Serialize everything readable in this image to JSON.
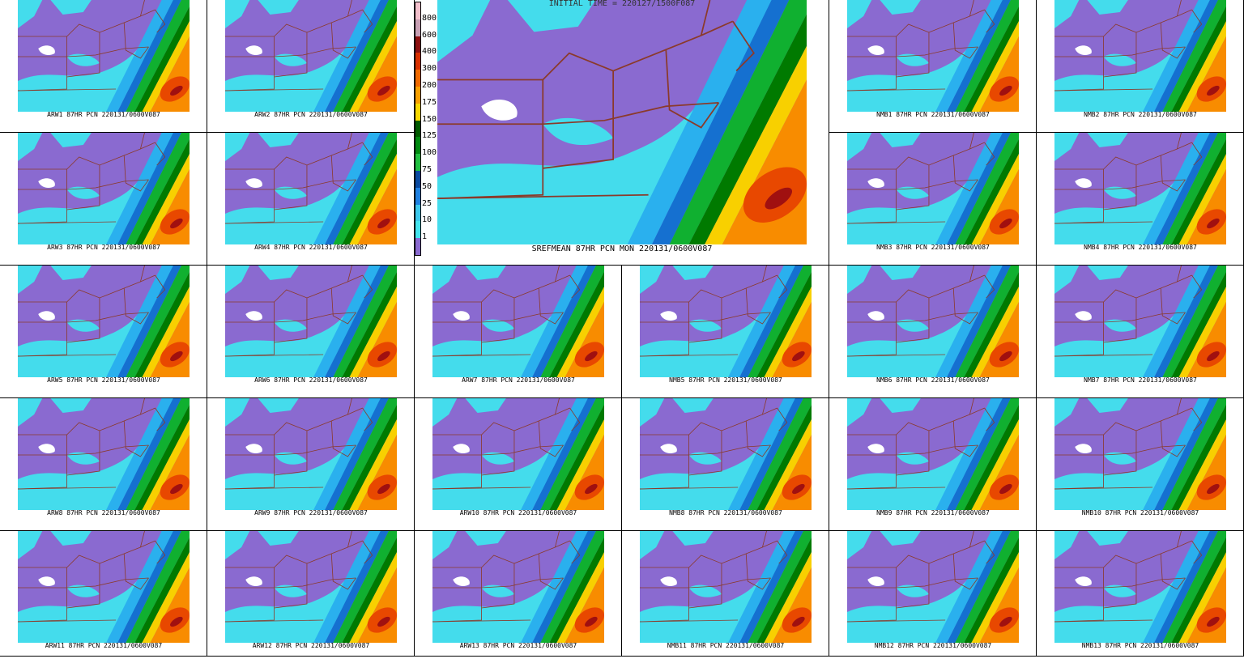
{
  "main_panel": {
    "title": "INITIAL TIME = 220127/1500F087",
    "caption": "SREFMEAN 87HR PCN MON 220131/0600V087"
  },
  "colorbar": {
    "labels": [
      800,
      600,
      400,
      300,
      200,
      175,
      150,
      125,
      100,
      75,
      50,
      25,
      10,
      1
    ]
  },
  "panels": [
    {
      "caption": "ARW1 87HR PCN 220131/0600V087"
    },
    {
      "caption": "ARW2 87HR PCN 220131/0600V087"
    },
    {
      "caption": "NMB1 87HR PCN 220131/0600V087"
    },
    {
      "caption": "NMB2 87HR PCN 220131/0600V087"
    },
    {
      "caption": "ARW3 87HR PCN 220131/0600V087"
    },
    {
      "caption": "ARW4 87HR PCN 220131/0600V087"
    },
    {
      "caption": "NMB3 87HR PCN 220131/0600V087"
    },
    {
      "caption": "NMB4 87HR PCN 220131/0600V087"
    },
    {
      "caption": "ARW5 87HR PCN 220131/0600V087"
    },
    {
      "caption": "ARW6 87HR PCN 220131/0600V087"
    },
    {
      "caption": "ARW7 87HR PCN 220131/0600V087"
    },
    {
      "caption": "NMB5 87HR PCN 220131/0600V087"
    },
    {
      "caption": "NMB6 87HR PCN 220131/0600V087"
    },
    {
      "caption": "NMB7 87HR PCN 220131/0600V087"
    },
    {
      "caption": "ARW8 87HR PCN 220131/0600V087"
    },
    {
      "caption": "ARW9 87HR PCN 220131/0600V087"
    },
    {
      "caption": "ARW10 87HR PCN 220131/0600V087"
    },
    {
      "caption": "NMB8 87HR PCN 220131/0600V087"
    },
    {
      "caption": "NMB9 87HR PCN 220131/0600V087"
    },
    {
      "caption": "NMB10 87HR PCN 220131/0600V087"
    },
    {
      "caption": "ARW11 87HR PCN 220131/0600V087"
    },
    {
      "caption": "ARW12 87HR PCN 220131/0600V087"
    },
    {
      "caption": "ARW13 87HR PCN 220131/0600V087"
    },
    {
      "caption": "NMB11 87HR PCN 220131/0600V087"
    },
    {
      "caption": "NMB12 87HR PCN 220131/0600V087"
    },
    {
      "caption": "NMB13 87HR PCN 220131/0600V087"
    }
  ]
}
